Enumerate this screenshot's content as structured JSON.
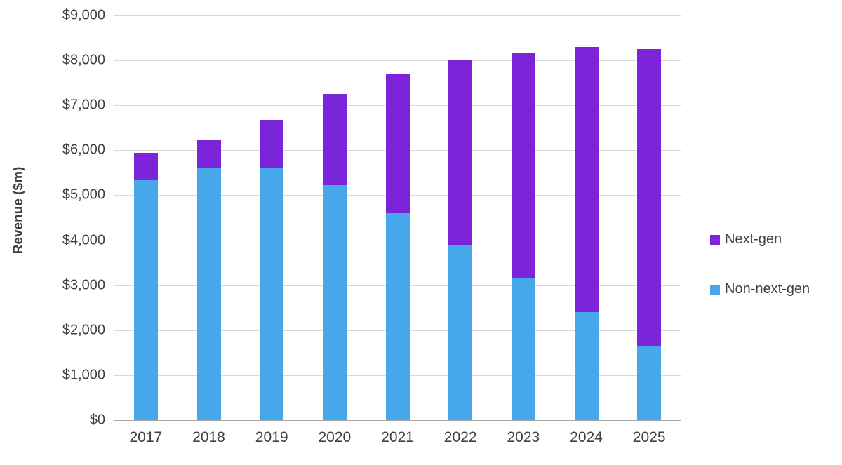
{
  "chart_data": {
    "type": "bar",
    "stacked": true,
    "title": "",
    "xlabel": "",
    "ylabel": "Revenue ($m)",
    "ylim": [
      0,
      9000
    ],
    "y_tick_step": 1000,
    "grid": "horizontal",
    "y_ticks": [
      {
        "value": 0,
        "label": "$0"
      },
      {
        "value": 1000,
        "label": "$1,000"
      },
      {
        "value": 2000,
        "label": "$2,000"
      },
      {
        "value": 3000,
        "label": "$3,000"
      },
      {
        "value": 4000,
        "label": "$4,000"
      },
      {
        "value": 5000,
        "label": "$5,000"
      },
      {
        "value": 6000,
        "label": "$6,000"
      },
      {
        "value": 7000,
        "label": "$7,000"
      },
      {
        "value": 8000,
        "label": "$8,000"
      },
      {
        "value": 9000,
        "label": "$9,000"
      }
    ],
    "categories": [
      "2017",
      "2018",
      "2019",
      "2020",
      "2021",
      "2022",
      "2023",
      "2024",
      "2025"
    ],
    "series": [
      {
        "name": "Non-next-gen",
        "color": "#47a7eb",
        "values": [
          5350,
          5600,
          5600,
          5230,
          4600,
          3900,
          3150,
          2400,
          1650
        ]
      },
      {
        "name": "Next-gen",
        "color": "#7c24d9",
        "values": [
          600,
          620,
          1080,
          2020,
          3100,
          4100,
          5030,
          5900,
          6600
        ]
      }
    ],
    "totals": [
      5950,
      6220,
      6680,
      7250,
      7700,
      8000,
      8180,
      8300,
      8250
    ],
    "legend": {
      "position": "right",
      "entries": [
        {
          "label": "Next-gen",
          "color": "#7c24d9"
        },
        {
          "label": "Non-next-gen",
          "color": "#47a7eb"
        }
      ]
    }
  },
  "colors": {
    "gridline": "#d9d9d9",
    "axis_line": "#a6a6a6",
    "text": "#404040",
    "background": "#ffffff"
  }
}
